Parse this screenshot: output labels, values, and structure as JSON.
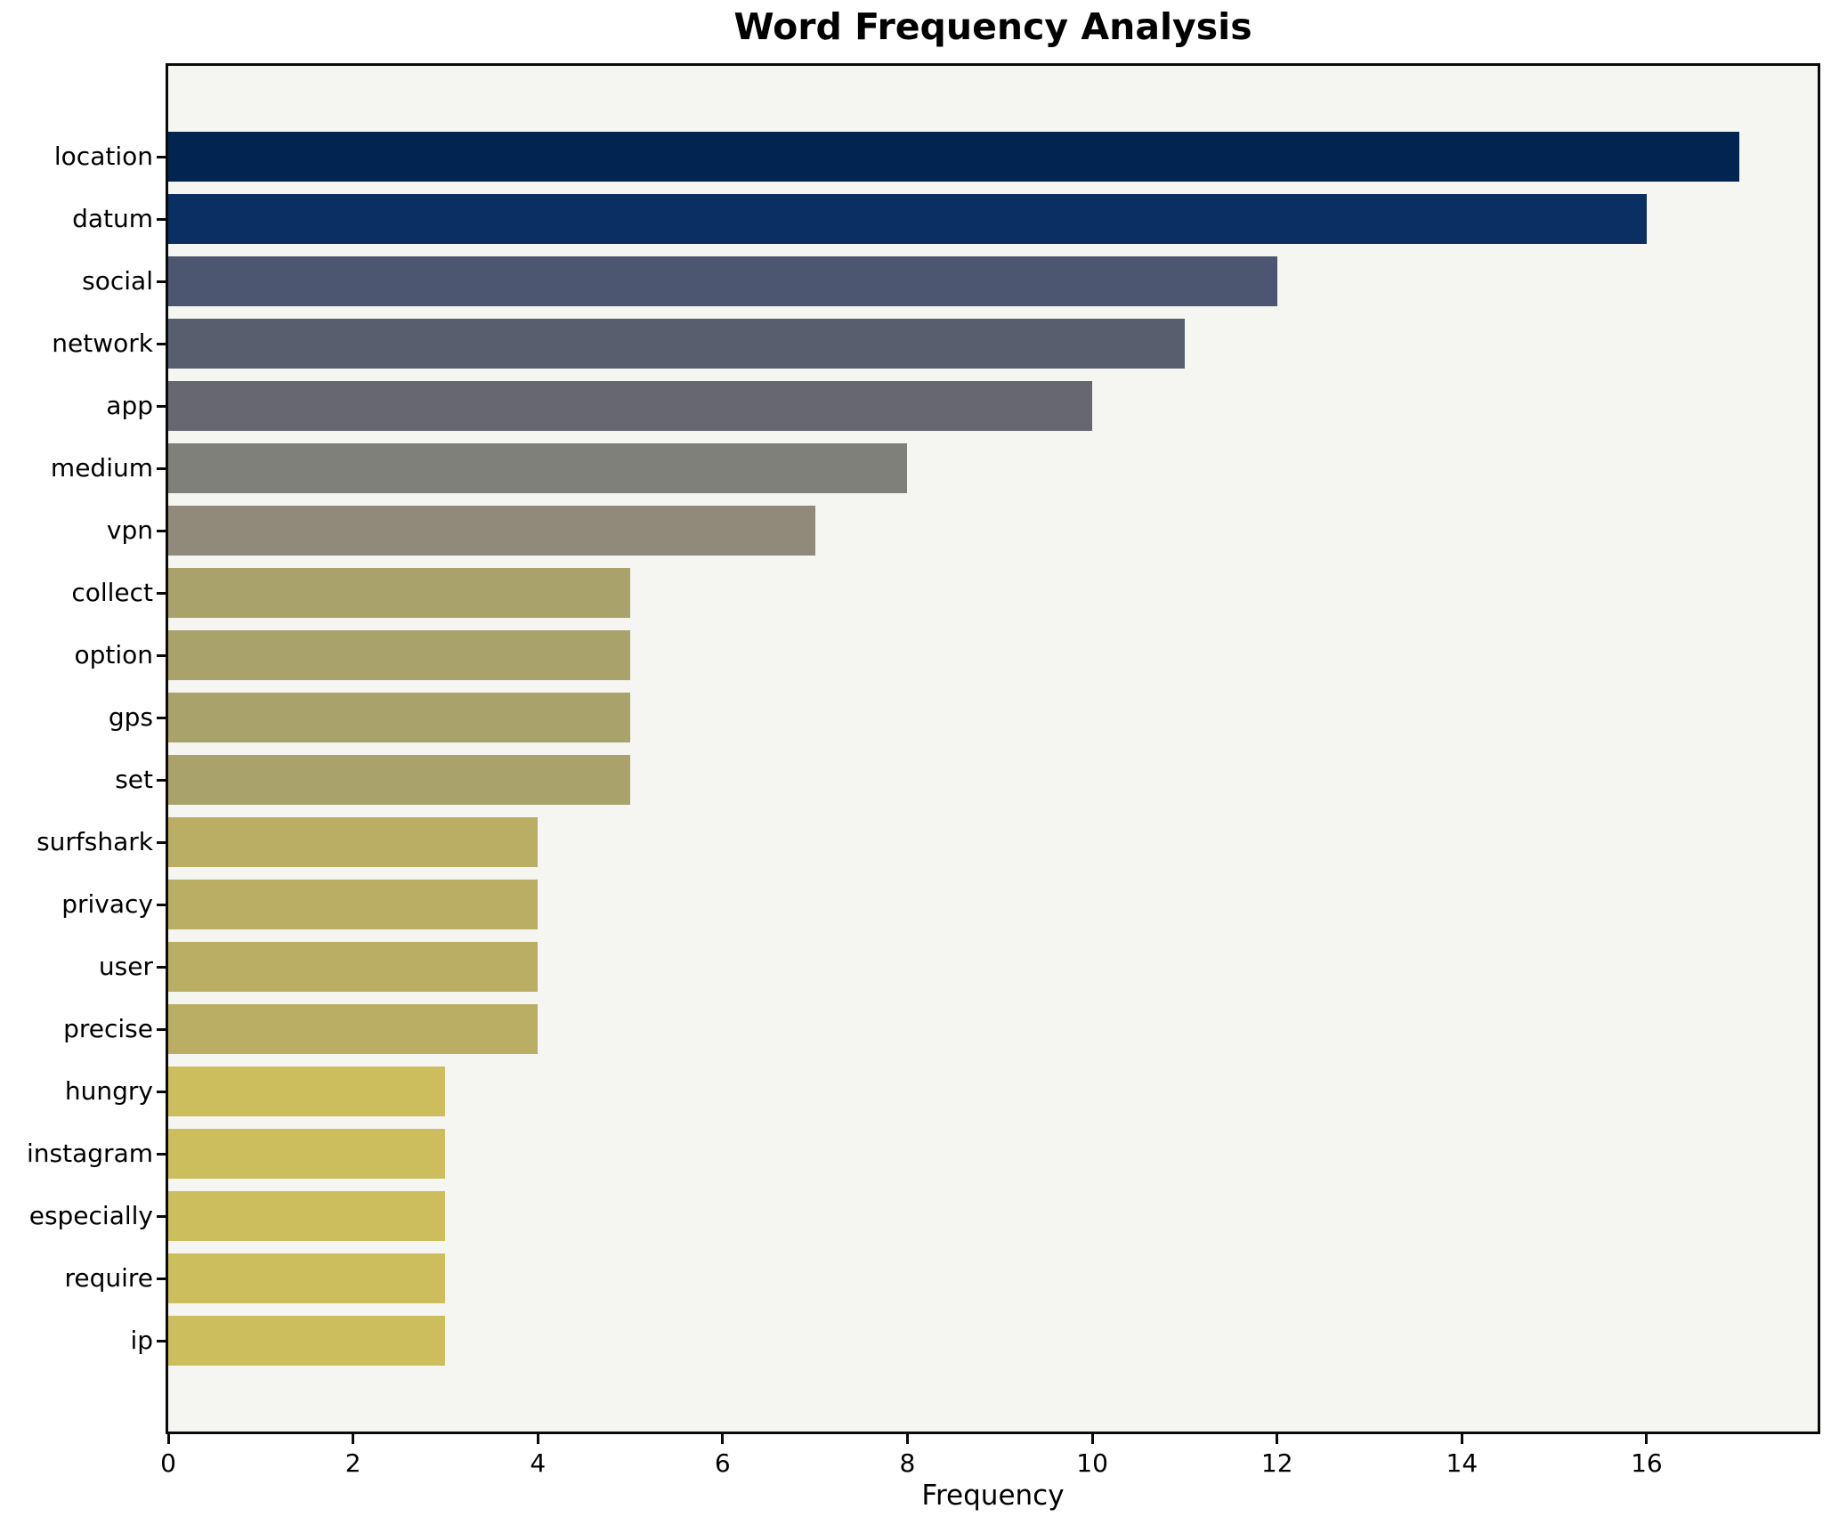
{
  "page_title": "Word Frequency Analysis",
  "chart_data": {
    "type": "bar",
    "orientation": "horizontal",
    "title": "Word Frequency Analysis",
    "xlabel": "Frequency",
    "ylabel": "",
    "categories": [
      "location",
      "datum",
      "social",
      "network",
      "app",
      "medium",
      "vpn",
      "collect",
      "option",
      "gps",
      "set",
      "surfshark",
      "privacy",
      "user",
      "precise",
      "hungry",
      "instagram",
      "especially",
      "require",
      "ip"
    ],
    "values": [
      17,
      16,
      12,
      11,
      10,
      8,
      7,
      5,
      5,
      5,
      5,
      4,
      4,
      4,
      4,
      3,
      3,
      3,
      3,
      3
    ],
    "bar_colors": [
      "#022450",
      "#0a2f63",
      "#4d5670",
      "#575f6e",
      "#67686f",
      "#80807a",
      "#8f8a7a",
      "#a9a26b",
      "#a9a26b",
      "#a9a26b",
      "#a9a26b",
      "#b9ae64",
      "#b9ae64",
      "#b9ae64",
      "#b9ae64",
      "#ccbd5d",
      "#ccbd5d",
      "#ccbd5d",
      "#ccbd5d",
      "#ccbd5d"
    ],
    "xlim": [
      0,
      17.85
    ],
    "x_ticks": [
      0,
      2,
      4,
      6,
      8,
      10,
      12,
      14,
      16
    ],
    "grid": false,
    "legend": "none",
    "plot_background": "#f5f5f2",
    "figure_background": "#ffffff",
    "spine_color": "#0a0a0a"
  }
}
